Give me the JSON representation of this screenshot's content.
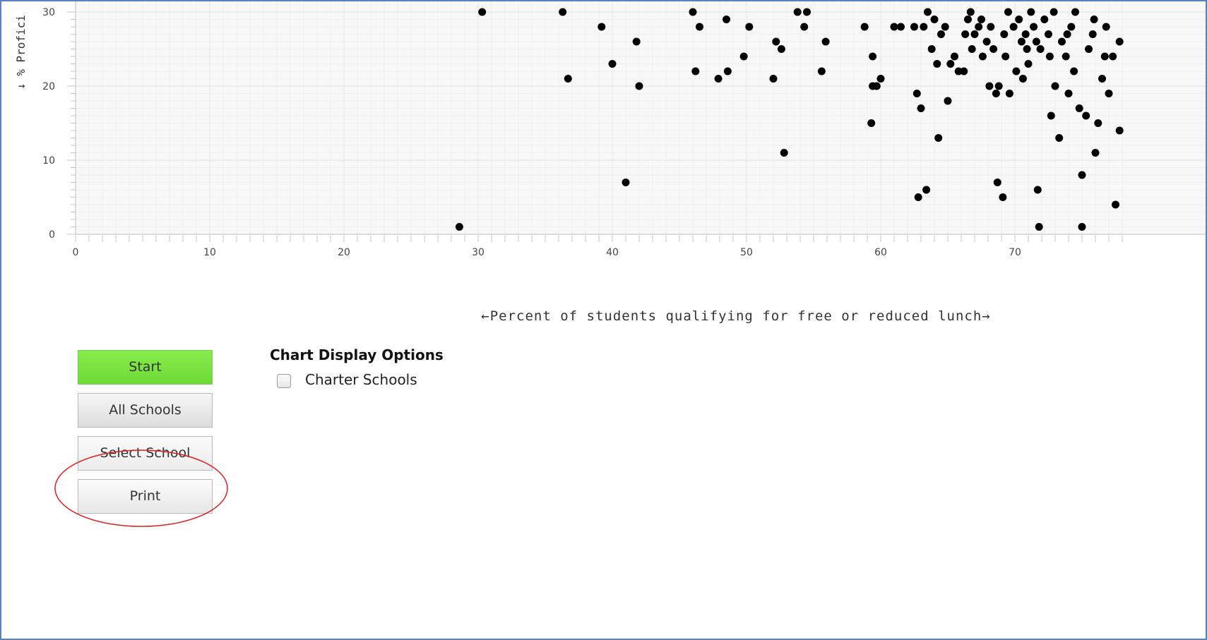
{
  "chart_data": {
    "type": "scatter",
    "xlabel": "←Percent of students qualifying for free or reduced lunch→",
    "ylabel": "↓ % Profici",
    "x_ticks": [
      "0",
      "10",
      "20",
      "30",
      "40",
      "50",
      "60",
      "70"
    ],
    "y_ticks": [
      "0",
      "10",
      "20",
      "30"
    ],
    "xlim": [
      0,
      78
    ],
    "ylim": [
      0,
      30.7
    ],
    "grid": true,
    "legend": "none",
    "point_color": "#000000",
    "points": [
      [
        28.6,
        1
      ],
      [
        30.3,
        30
      ],
      [
        36.3,
        30
      ],
      [
        36.7,
        21
      ],
      [
        39.2,
        28
      ],
      [
        40,
        23
      ],
      [
        41,
        7
      ],
      [
        41.8,
        26
      ],
      [
        42,
        20
      ],
      [
        46,
        30
      ],
      [
        46.2,
        22
      ],
      [
        46.5,
        28
      ],
      [
        47.9,
        21
      ],
      [
        48.5,
        29
      ],
      [
        48.6,
        22
      ],
      [
        49.8,
        24
      ],
      [
        50.2,
        28
      ],
      [
        52,
        21
      ],
      [
        52.2,
        26
      ],
      [
        52.6,
        25
      ],
      [
        52.8,
        11
      ],
      [
        53.8,
        30
      ],
      [
        54.3,
        28
      ],
      [
        54.5,
        30
      ],
      [
        55.6,
        22
      ],
      [
        55.9,
        26
      ],
      [
        58.8,
        28
      ],
      [
        59.3,
        15
      ],
      [
        59.4,
        20
      ],
      [
        59.4,
        24
      ],
      [
        59.7,
        20
      ],
      [
        60,
        21
      ],
      [
        61,
        28
      ],
      [
        61.5,
        28
      ],
      [
        62.5,
        28
      ],
      [
        62.7,
        19
      ],
      [
        62.8,
        5
      ],
      [
        63,
        17
      ],
      [
        63.2,
        28
      ],
      [
        63.4,
        6
      ],
      [
        63.5,
        30
      ],
      [
        63.8,
        25
      ],
      [
        64,
        29
      ],
      [
        64.3,
        13
      ],
      [
        64.2,
        23
      ],
      [
        64.5,
        27
      ],
      [
        64.8,
        28
      ],
      [
        65,
        18
      ],
      [
        65.2,
        23
      ],
      [
        65.5,
        24
      ],
      [
        65.8,
        22
      ],
      [
        66.2,
        22
      ],
      [
        66.5,
        29
      ],
      [
        66.7,
        30
      ],
      [
        66.8,
        25
      ],
      [
        67,
        27
      ],
      [
        67.3,
        28
      ],
      [
        67.6,
        24
      ],
      [
        67.9,
        26
      ],
      [
        68.1,
        20
      ],
      [
        68.2,
        28
      ],
      [
        68.4,
        25
      ],
      [
        68.6,
        19
      ],
      [
        68.7,
        7
      ],
      [
        68.8,
        20
      ],
      [
        69.1,
        5
      ],
      [
        69.3,
        24
      ],
      [
        69.5,
        30
      ],
      [
        69.6,
        19
      ],
      [
        69.9,
        28
      ],
      [
        70.1,
        22
      ],
      [
        70.3,
        29
      ],
      [
        70.5,
        26
      ],
      [
        70.6,
        21
      ],
      [
        70.8,
        27
      ],
      [
        71,
        23
      ],
      [
        71.2,
        30
      ],
      [
        71.4,
        28
      ],
      [
        71.7,
        6
      ],
      [
        71.8,
        1
      ],
      [
        71.9,
        25
      ],
      [
        72.2,
        29
      ],
      [
        72.5,
        27
      ],
      [
        72.7,
        16
      ],
      [
        72.9,
        30
      ],
      [
        73,
        20
      ],
      [
        73.3,
        13
      ],
      [
        73.5,
        26
      ],
      [
        73.8,
        24
      ],
      [
        74,
        19
      ],
      [
        74.2,
        28
      ],
      [
        74.5,
        30
      ],
      [
        74.8,
        17
      ],
      [
        75,
        8
      ],
      [
        75,
        1
      ],
      [
        75.3,
        16
      ],
      [
        75.5,
        25
      ],
      [
        75.8,
        27
      ],
      [
        76,
        11
      ],
      [
        76.2,
        15
      ],
      [
        76.5,
        21
      ],
      [
        76.8,
        28
      ],
      [
        77,
        19
      ],
      [
        77.3,
        24
      ],
      [
        77.5,
        4
      ],
      [
        77.8,
        14
      ],
      [
        77.8,
        26
      ],
      [
        76.7,
        24
      ],
      [
        75.9,
        29
      ],
      [
        74.4,
        22
      ],
      [
        73.9,
        27
      ],
      [
        72.6,
        24
      ],
      [
        71.6,
        26
      ],
      [
        70.9,
        25
      ],
      [
        69.2,
        27
      ],
      [
        67.5,
        29
      ],
      [
        66.3,
        27
      ]
    ]
  },
  "buttons": {
    "start": "Start",
    "all_schools": "All Schools",
    "select_school": "Select School",
    "print": "Print"
  },
  "options": {
    "title": "Chart Display Options",
    "charter_label": "Charter Schools",
    "charter_checked": false
  },
  "colors": {
    "highlight": "#e02020",
    "start_button": "#78e040",
    "frame_border": "#5b82c0"
  }
}
